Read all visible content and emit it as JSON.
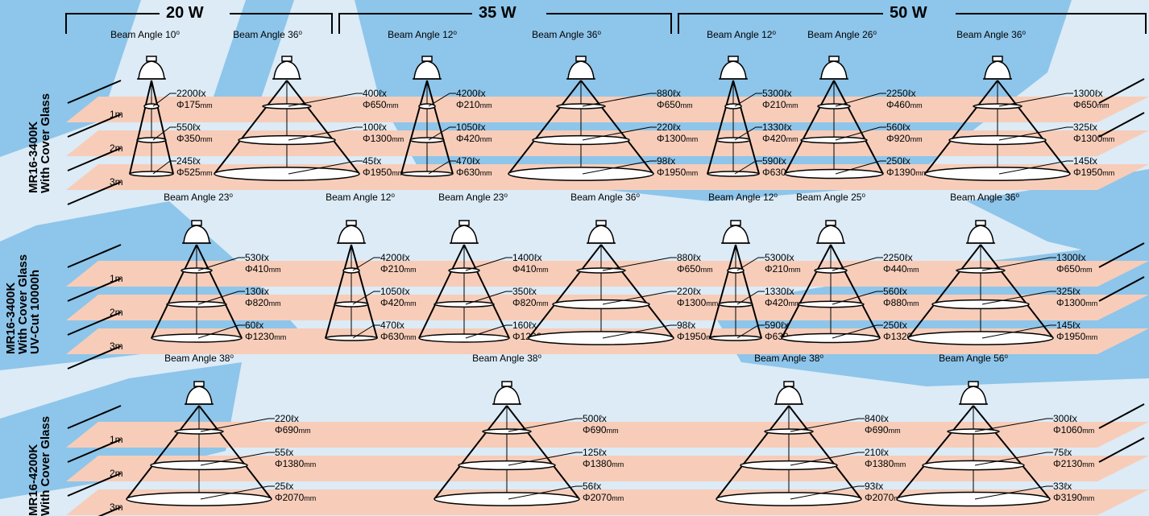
{
  "colors": {
    "background": "#dcebf6",
    "swoosh": "#8ec5ea",
    "floor_band": "#f7cdb9",
    "ink": "#000000"
  },
  "wattage_headers": [
    "20 W",
    "35 W",
    "50 W"
  ],
  "distance_labels": [
    "1m",
    "2m",
    "3m"
  ],
  "icon": "lamp-icon",
  "rows": [
    {
      "label": [
        "MR16-3400K",
        "With Cover Glass"
      ],
      "lamps": [
        {
          "title": "Beam Angle 10",
          "unit": "o",
          "wide": false,
          "readings": [
            [
              "2200ℓx",
              "Φ175",
              "mm"
            ],
            [
              "550ℓx",
              "Φ350",
              "mm"
            ],
            [
              "245ℓx",
              "Φ525",
              "mm"
            ]
          ]
        },
        {
          "title": "Beam Angle 36",
          "unit": "o",
          "wide": true,
          "readings": [
            [
              "400ℓx",
              "Φ650",
              "mm"
            ],
            [
              "100ℓx",
              "Φ1300",
              "mm"
            ],
            [
              "45ℓx",
              "Φ1950",
              "mm"
            ]
          ]
        },
        {
          "title": "Beam Angle 12",
          "unit": "o",
          "wide": false,
          "readings": [
            [
              "4200ℓx",
              "Φ210",
              "mm"
            ],
            [
              "1050ℓx",
              "Φ420",
              "mm"
            ],
            [
              "470ℓx",
              "Φ630",
              "mm"
            ]
          ]
        },
        {
          "title": "Beam Angle 36",
          "unit": "o",
          "wide": true,
          "readings": [
            [
              "880ℓx",
              "Φ650",
              "mm"
            ],
            [
              "220ℓx",
              "Φ1300",
              "mm"
            ],
            [
              "98ℓx",
              "Φ1950",
              "mm"
            ]
          ]
        },
        {
          "title": "Beam Angle 12",
          "unit": "o",
          "wide": false,
          "readings": [
            [
              "5300ℓx",
              "Φ210",
              "mm"
            ],
            [
              "1330ℓx",
              "Φ420",
              "mm"
            ],
            [
              "590ℓx",
              "Φ630",
              "mm"
            ]
          ]
        },
        {
          "title": "Beam Angle 26",
          "unit": "o",
          "wide": false,
          "readings": [
            [
              "2250ℓx",
              "Φ460",
              "mm"
            ],
            [
              "560ℓx",
              "Φ920",
              "mm"
            ],
            [
              "250ℓx",
              "Φ1390",
              "mm"
            ]
          ]
        },
        {
          "title": "Beam Angle 36",
          "unit": "o",
          "wide": true,
          "readings": [
            [
              "1300ℓx",
              "Φ650",
              "mm"
            ],
            [
              "325ℓx",
              "Φ1300",
              "mm"
            ],
            [
              "145ℓx",
              "Φ1950",
              "mm"
            ]
          ]
        }
      ]
    },
    {
      "label": [
        "MR16-3400K",
        "With Cover Glass",
        "UV-Cut 10000h"
      ],
      "lamps": [
        {
          "title": "Beam Angle 23",
          "unit": "o",
          "wide": false,
          "readings": [
            [
              "530ℓx",
              "Φ410",
              "mm"
            ],
            [
              "130ℓx",
              "Φ820",
              "mm"
            ],
            [
              "60ℓx",
              "Φ1230",
              "mm"
            ]
          ]
        },
        {
          "title": "Beam Angle 12",
          "unit": "o",
          "wide": false,
          "readings": [
            [
              "4200ℓx",
              "Φ210",
              "mm"
            ],
            [
              "1050ℓx",
              "Φ420",
              "mm"
            ],
            [
              "470ℓx",
              "Φ630",
              "mm"
            ]
          ]
        },
        {
          "title": "Beam Angle 23",
          "unit": "o",
          "wide": false,
          "readings": [
            [
              "1400ℓx",
              "Φ410",
              "mm"
            ],
            [
              "350ℓx",
              "Φ820",
              "mm"
            ],
            [
              "160ℓx",
              "Φ1230",
              "mm"
            ]
          ]
        },
        {
          "title": "Beam Angle 36",
          "unit": "o",
          "wide": true,
          "readings": [
            [
              "880ℓx",
              "Φ650",
              "mm"
            ],
            [
              "220ℓx",
              "Φ1300",
              "mm"
            ],
            [
              "98ℓx",
              "Φ1950",
              "mm"
            ]
          ]
        },
        {
          "title": "Beam Angle 12",
          "unit": "o",
          "wide": false,
          "readings": [
            [
              "5300ℓx",
              "Φ210",
              "mm"
            ],
            [
              "1330ℓx",
              "Φ420",
              "mm"
            ],
            [
              "590ℓx",
              "Φ630",
              "mm"
            ]
          ]
        },
        {
          "title": "Beam Angle 25",
          "unit": "o",
          "wide": false,
          "readings": [
            [
              "2250ℓx",
              "Φ440",
              "mm"
            ],
            [
              "560ℓx",
              "Φ880",
              "mm"
            ],
            [
              "250ℓx",
              "Φ1320",
              "mm"
            ]
          ]
        },
        {
          "title": "Beam Angle 36",
          "unit": "o",
          "wide": true,
          "readings": [
            [
              "1300ℓx",
              "Φ650",
              "mm"
            ],
            [
              "325ℓx",
              "Φ1300",
              "mm"
            ],
            [
              "145ℓx",
              "Φ1950",
              "mm"
            ]
          ]
        }
      ]
    },
    {
      "label": [
        "MR16-4200K",
        "With Cover Glass"
      ],
      "lamps": [
        {
          "title": "Beam Angle 38",
          "unit": "o",
          "wide": true,
          "readings": [
            [
              "220ℓx",
              "Φ690",
              "mm"
            ],
            [
              "55ℓx",
              "Φ1380",
              "mm"
            ],
            [
              "25ℓx",
              "Φ2070",
              "mm"
            ]
          ]
        },
        {
          "title": "Beam Angle 38",
          "unit": "o",
          "wide": true,
          "readings": [
            [
              "500ℓx",
              "Φ690",
              "mm"
            ],
            [
              "125ℓx",
              "Φ1380",
              "mm"
            ],
            [
              "56ℓx",
              "Φ2070",
              "mm"
            ]
          ]
        },
        {
          "title": "Beam Angle 38",
          "unit": "o",
          "wide": true,
          "readings": [
            [
              "840ℓx",
              "Φ690",
              "mm"
            ],
            [
              "210ℓx",
              "Φ1380",
              "mm"
            ],
            [
              "93ℓx",
              "Φ2070",
              "mm"
            ]
          ]
        },
        {
          "title": "Beam Angle 56",
          "unit": "o",
          "wide": true,
          "readings": [
            [
              "300ℓx",
              "Φ1060",
              "mm"
            ],
            [
              "75ℓx",
              "Φ2130",
              "mm"
            ],
            [
              "33ℓx",
              "Φ3190",
              "mm"
            ]
          ]
        }
      ]
    }
  ]
}
